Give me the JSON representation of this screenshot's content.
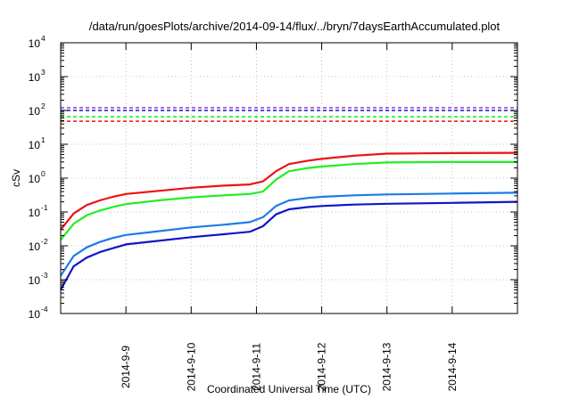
{
  "chart_data": {
    "type": "line",
    "title": "/data/run/goesPlots/archive/2014-09-14/flux/../bryn/7daysEarthAccumulated.plot",
    "xlabel": "Coordinated Universal Time (UTC)",
    "ylabel": "cSv",
    "yscale": "log",
    "ylim": [
      0.0001,
      10000
    ],
    "y_ticks": [
      {
        "value": 0.0001,
        "base": "10",
        "exp": "-4"
      },
      {
        "value": 0.001,
        "base": "10",
        "exp": "-3"
      },
      {
        "value": 0.01,
        "base": "10",
        "exp": "-2"
      },
      {
        "value": 0.1,
        "base": "10",
        "exp": "-1"
      },
      {
        "value": 1,
        "base": "10",
        "exp": "0"
      },
      {
        "value": 10,
        "base": "10",
        "exp": "1"
      },
      {
        "value": 100,
        "base": "10",
        "exp": "2"
      },
      {
        "value": 1000,
        "base": "10",
        "exp": "3"
      },
      {
        "value": 10000,
        "base": "10",
        "exp": "4"
      }
    ],
    "xlim": [
      "2014-09-08T00:00",
      "2014-09-15T00:00"
    ],
    "x_ticks": [
      {
        "value": "2014-09-09T00:00",
        "label": "2014-9-9"
      },
      {
        "value": "2014-09-10T00:00",
        "label": "2014-9-10"
      },
      {
        "value": "2014-09-11T00:00",
        "label": "2014-9-11"
      },
      {
        "value": "2014-09-12T00:00",
        "label": "2014-9-12"
      },
      {
        "value": "2014-09-13T00:00",
        "label": "2014-9-13"
      },
      {
        "value": "2014-09-14T00:00",
        "label": "2014-9-14"
      }
    ],
    "grid": true,
    "series": [
      {
        "color": "#ee1111",
        "x": [
          "2014-09-08T00:00",
          "2014-09-08T04:48",
          "2014-09-08T09:36",
          "2014-09-08T14:24",
          "2014-09-08T19:12",
          "2014-09-09T00:00",
          "2014-09-09T12:00",
          "2014-09-10T00:00",
          "2014-09-10T12:00",
          "2014-09-10T21:36",
          "2014-09-11T02:24",
          "2014-09-11T07:12",
          "2014-09-11T12:00",
          "2014-09-11T19:12",
          "2014-09-12T00:00",
          "2014-09-12T12:00",
          "2014-09-13T00:00",
          "2014-09-13T12:00",
          "2014-09-14T00:00",
          "2014-09-15T00:00"
        ],
        "y": [
          0.03,
          0.09,
          0.16,
          0.22,
          0.28,
          0.34,
          0.42,
          0.52,
          0.6,
          0.65,
          0.8,
          1.6,
          2.6,
          3.3,
          3.7,
          4.6,
          5.3,
          5.4,
          5.5,
          5.6
        ]
      },
      {
        "color": "#22ee22",
        "x": [
          "2014-09-08T00:00",
          "2014-09-08T04:48",
          "2014-09-08T09:36",
          "2014-09-08T14:24",
          "2014-09-08T19:12",
          "2014-09-09T00:00",
          "2014-09-09T12:00",
          "2014-09-10T00:00",
          "2014-09-10T12:00",
          "2014-09-10T21:36",
          "2014-09-11T02:24",
          "2014-09-11T07:12",
          "2014-09-11T12:00",
          "2014-09-11T19:12",
          "2014-09-12T00:00",
          "2014-09-12T12:00",
          "2014-09-13T00:00",
          "2014-09-13T12:00",
          "2014-09-14T00:00",
          "2014-09-15T00:00"
        ],
        "y": [
          0.015,
          0.045,
          0.08,
          0.11,
          0.14,
          0.17,
          0.22,
          0.27,
          0.31,
          0.34,
          0.4,
          0.9,
          1.6,
          2.0,
          2.2,
          2.6,
          2.9,
          2.95,
          3.0,
          3.0
        ]
      },
      {
        "color": "#1e7be8",
        "x": [
          "2014-09-08T00:00",
          "2014-09-08T04:48",
          "2014-09-08T09:36",
          "2014-09-08T14:24",
          "2014-09-08T19:12",
          "2014-09-09T00:00",
          "2014-09-09T12:00",
          "2014-09-10T00:00",
          "2014-09-10T12:00",
          "2014-09-10T21:36",
          "2014-09-11T02:24",
          "2014-09-11T07:12",
          "2014-09-11T12:00",
          "2014-09-11T19:12",
          "2014-09-12T00:00",
          "2014-09-12T12:00",
          "2014-09-13T00:00",
          "2014-09-13T12:00",
          "2014-09-14T00:00",
          "2014-09-15T00:00"
        ],
        "y": [
          0.0013,
          0.005,
          0.009,
          0.013,
          0.017,
          0.021,
          0.027,
          0.035,
          0.042,
          0.05,
          0.07,
          0.15,
          0.22,
          0.26,
          0.28,
          0.31,
          0.33,
          0.34,
          0.35,
          0.37
        ]
      },
      {
        "color": "#1414c8",
        "x": [
          "2014-09-08T00:00",
          "2014-09-08T04:48",
          "2014-09-08T09:36",
          "2014-09-08T14:24",
          "2014-09-08T19:12",
          "2014-09-09T00:00",
          "2014-09-09T12:00",
          "2014-09-10T00:00",
          "2014-09-10T12:00",
          "2014-09-10T21:36",
          "2014-09-11T02:24",
          "2014-09-11T07:12",
          "2014-09-11T12:00",
          "2014-09-11T19:12",
          "2014-09-12T00:00",
          "2014-09-12T12:00",
          "2014-09-13T00:00",
          "2014-09-13T12:00",
          "2014-09-14T00:00",
          "2014-09-15T00:00"
        ],
        "y": [
          0.0005,
          0.0025,
          0.0045,
          0.0065,
          0.0085,
          0.011,
          0.014,
          0.018,
          0.022,
          0.026,
          0.038,
          0.085,
          0.12,
          0.14,
          0.15,
          0.165,
          0.175,
          0.18,
          0.185,
          0.2
        ]
      }
    ],
    "thresholds": [
      {
        "color": "#9933cc",
        "value": 120
      },
      {
        "color": "#1414c8",
        "value": 100
      },
      {
        "color": "#22ee22",
        "value": 65
      },
      {
        "color": "#ee1111",
        "value": 48
      }
    ]
  }
}
